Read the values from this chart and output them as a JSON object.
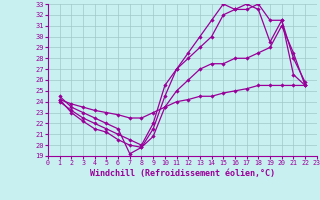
{
  "xlabel": "Windchill (Refroidissement éolien,°C)",
  "background_color": "#c8f0f0",
  "grid_color": "#a0c8c8",
  "line_color": "#990099",
  "xlim": [
    0,
    23
  ],
  "ylim": [
    19,
    33
  ],
  "xticks": [
    0,
    1,
    2,
    3,
    4,
    5,
    6,
    7,
    8,
    9,
    10,
    11,
    12,
    13,
    14,
    15,
    16,
    17,
    18,
    19,
    20,
    21,
    22,
    23
  ],
  "yticks": [
    19,
    20,
    21,
    22,
    23,
    24,
    25,
    26,
    27,
    28,
    29,
    30,
    31,
    32,
    33
  ],
  "series": [
    {
      "x": [
        1,
        2,
        3,
        4,
        5,
        6,
        7,
        8,
        9,
        10,
        11,
        12,
        13,
        14,
        15,
        16,
        17,
        18,
        19,
        20,
        21,
        22
      ],
      "y": [
        24.5,
        23.5,
        23.0,
        22.5,
        22.0,
        21.5,
        19.2,
        19.8,
        21.5,
        24.5,
        27.0,
        28.5,
        30.0,
        31.5,
        33.0,
        32.5,
        32.5,
        33.0,
        31.5,
        31.5,
        26.5,
        25.5
      ]
    },
    {
      "x": [
        1,
        2,
        3,
        4,
        5,
        6,
        7,
        8,
        9,
        10,
        11,
        12,
        13,
        14,
        15,
        16,
        17,
        18,
        19,
        20,
        21,
        22
      ],
      "y": [
        24.0,
        23.2,
        22.5,
        22.0,
        21.5,
        21.0,
        20.5,
        20.0,
        22.0,
        25.5,
        27.0,
        28.0,
        29.0,
        30.0,
        32.0,
        32.5,
        33.0,
        32.5,
        29.5,
        31.5,
        28.0,
        25.8
      ]
    },
    {
      "x": [
        1,
        2,
        3,
        4,
        5,
        6,
        7,
        8,
        9,
        10,
        11,
        12,
        13,
        14,
        15,
        16,
        17,
        18,
        19,
        20,
        21,
        22
      ],
      "y": [
        24.2,
        23.8,
        23.5,
        23.2,
        23.0,
        22.8,
        22.5,
        22.5,
        23.0,
        23.5,
        24.0,
        24.2,
        24.5,
        24.5,
        24.8,
        25.0,
        25.2,
        25.5,
        25.5,
        25.5,
        25.5,
        25.5
      ]
    },
    {
      "x": [
        1,
        2,
        3,
        4,
        5,
        6,
        7,
        8,
        9,
        10,
        11,
        12,
        13,
        14,
        15,
        16,
        17,
        18,
        19,
        20,
        21,
        22
      ],
      "y": [
        24.2,
        23.0,
        22.2,
        21.5,
        21.2,
        20.5,
        20.0,
        19.8,
        20.8,
        23.5,
        25.0,
        26.0,
        27.0,
        27.5,
        27.5,
        28.0,
        28.0,
        28.5,
        29.0,
        31.0,
        28.5,
        25.5
      ]
    }
  ]
}
